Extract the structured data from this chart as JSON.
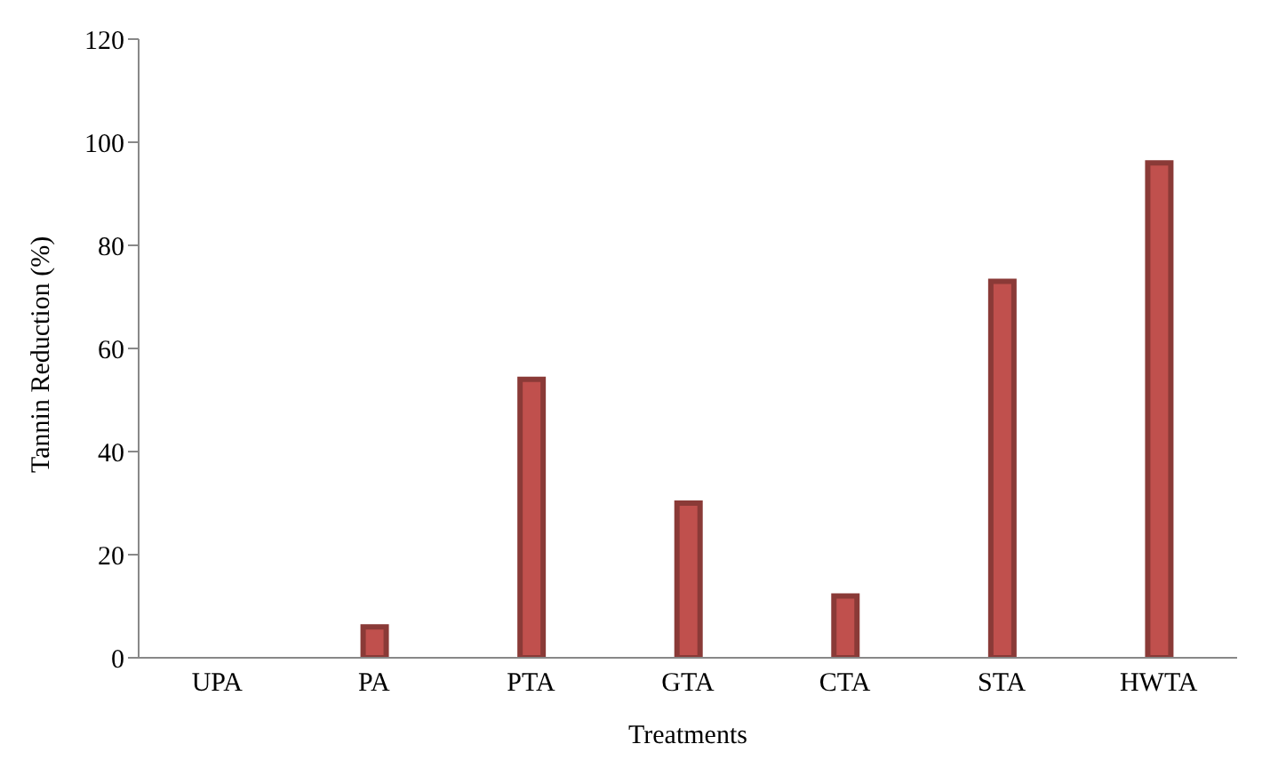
{
  "chart_data": {
    "type": "bar",
    "xlabel": "Treatments",
    "ylabel": "Tannin Reduction (%)",
    "categories": [
      "UPA",
      "PA",
      "PTA",
      "GTA",
      "CTA",
      "STA",
      "HWTA"
    ],
    "values": [
      0,
      6,
      54,
      30,
      12,
      73,
      96
    ],
    "color": "#c0504d",
    "ylim": [
      0,
      120
    ],
    "yticks": [
      0,
      20,
      40,
      60,
      80,
      100,
      120
    ],
    "grid": false,
    "legend": false
  }
}
